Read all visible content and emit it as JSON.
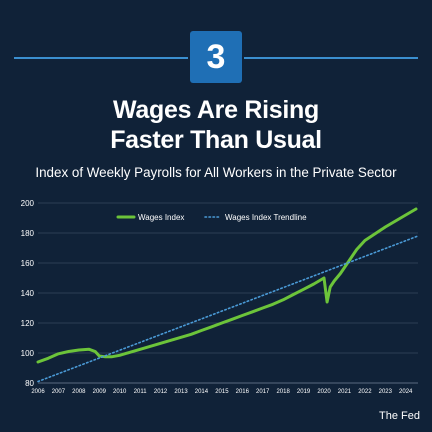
{
  "header": {
    "badge_number": "3",
    "title_line1": "Wages Are Rising",
    "title_line2": "Faster Than Usual",
    "subtitle": "Index of Weekly Payrolls for All Workers in the Private Sector"
  },
  "source": "The Fed",
  "colors": {
    "background": "#102238",
    "accent": "#3b8fcf",
    "badge": "#1f6fb5",
    "series": "#6cc43a",
    "trendline": "#4a9ad6",
    "grid": "#2c3e55"
  },
  "chart_data": {
    "type": "line",
    "title": "Index of Weekly Payrolls for All Workers in the Private Sector",
    "xlabel": "",
    "ylabel": "",
    "xlim": [
      2006,
      2024.6
    ],
    "ylim": [
      80,
      200
    ],
    "yticks": [
      80,
      100,
      120,
      140,
      160,
      180,
      200
    ],
    "xticks": [
      "2006",
      "2007",
      "2008",
      "2009",
      "2010",
      "2011",
      "2012",
      "2013",
      "2014",
      "2015",
      "2016",
      "2017",
      "2018",
      "2019",
      "2020",
      "2021",
      "2022",
      "2023",
      "2024"
    ],
    "grid": true,
    "legend": "top-center",
    "series": [
      {
        "name": "Wages Index",
        "style": "solid",
        "x": [
          2006.0,
          2006.5,
          2007.0,
          2007.5,
          2008.0,
          2008.5,
          2008.8,
          2009.0,
          2009.3,
          2009.6,
          2010.0,
          2010.5,
          2011.0,
          2011.5,
          2012.0,
          2012.5,
          2013.0,
          2013.5,
          2014.0,
          2014.5,
          2015.0,
          2015.5,
          2016.0,
          2016.5,
          2017.0,
          2017.5,
          2018.0,
          2018.5,
          2019.0,
          2019.5,
          2020.0,
          2020.15,
          2020.3,
          2020.5,
          2020.8,
          2021.0,
          2021.3,
          2021.6,
          2022.0,
          2022.5,
          2023.0,
          2023.5,
          2024.0,
          2024.5
        ],
        "y": [
          94,
          96.5,
          99.5,
          101,
          102,
          102.5,
          101,
          98,
          97.5,
          97.5,
          98.5,
          100.5,
          102.5,
          104.5,
          106.5,
          108.5,
          110.5,
          112.5,
          115,
          117.5,
          120,
          122.5,
          125,
          127.5,
          130,
          132.5,
          135.5,
          139,
          142.5,
          146,
          150,
          134,
          144,
          148,
          153,
          157,
          163,
          169,
          175,
          179.5,
          184,
          188,
          192,
          196
        ]
      },
      {
        "name": "Wages Index Trendline",
        "style": "dotted",
        "x": [
          2006.0,
          2024.6
        ],
        "y": [
          81,
          178
        ]
      }
    ]
  }
}
